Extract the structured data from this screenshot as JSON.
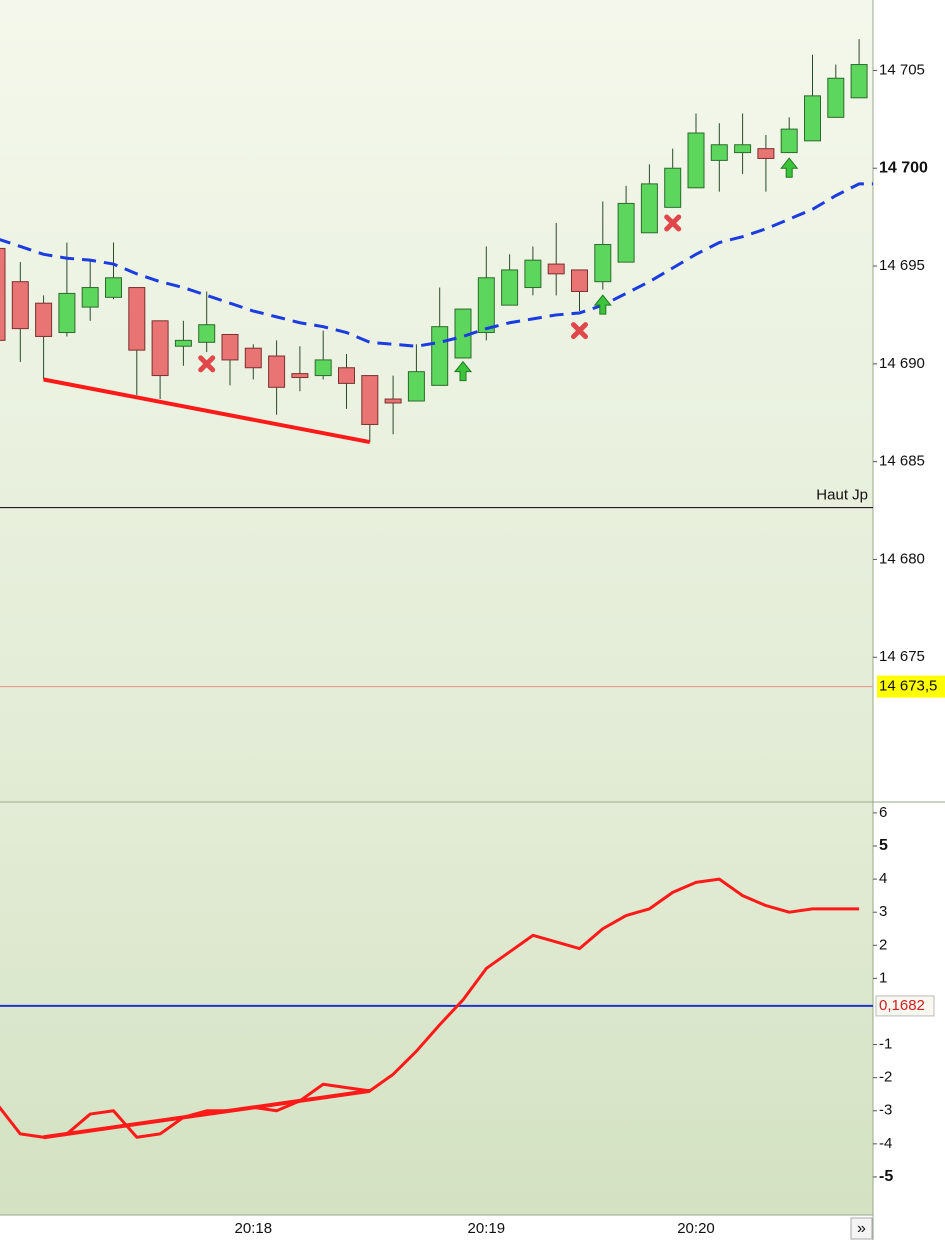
{
  "chart_data": [
    {
      "type": "candlestick",
      "open": [
        14695.9,
        14694.2,
        14693.1,
        14691.6,
        14692.9,
        14693.4,
        14693.9,
        14692.2,
        14690.9,
        14691.1,
        14691.5,
        14690.8,
        14690.4,
        14689.5,
        14689.4,
        14689.8,
        14689.4,
        14688.2,
        14688.1,
        14688.9,
        14690.3,
        14691.6,
        14693.0,
        14693.9,
        14695.1,
        14694.8,
        14694.2,
        14695.2,
        14696.7,
        14698.0,
        14699.0,
        14700.4,
        14700.8,
        14701.0,
        14700.8,
        14701.4,
        14702.6,
        14703.6
      ],
      "high": [
        14696.0,
        14695.2,
        14693.5,
        14696.2,
        14695.3,
        14696.2,
        14693.9,
        14692.2,
        14692.2,
        14693.7,
        14691.5,
        14691.0,
        14691.2,
        14690.9,
        14691.7,
        14690.5,
        14689.4,
        14689.4,
        14691.0,
        14693.9,
        14692.8,
        14696.0,
        14695.6,
        14696.0,
        14697.2,
        14694.8,
        14698.3,
        14699.1,
        14700.2,
        14701.0,
        14702.8,
        14702.3,
        14702.8,
        14701.7,
        14702.6,
        14705.8,
        14705.3,
        14706.6
      ],
      "low": [
        14689.9,
        14690.1,
        14689.2,
        14691.4,
        14692.2,
        14693.3,
        14688.4,
        14688.2,
        14689.9,
        14690.6,
        14688.9,
        14689.2,
        14687.4,
        14688.6,
        14689.2,
        14687.7,
        14686.0,
        14686.4,
        14688.1,
        14688.9,
        14690.3,
        14691.2,
        14693.0,
        14693.5,
        14693.5,
        14692.7,
        14693.8,
        14695.2,
        14696.7,
        14698.0,
        14699.0,
        14698.8,
        14699.7,
        14698.8,
        14700.8,
        14701.4,
        14702.6,
        14703.6
      ],
      "close": [
        14691.2,
        14691.8,
        14691.4,
        14693.6,
        14693.9,
        14694.4,
        14690.7,
        14689.4,
        14691.2,
        14692.0,
        14690.2,
        14689.8,
        14688.8,
        14689.3,
        14690.2,
        14689.0,
        14686.9,
        14688.0,
        14689.6,
        14691.9,
        14692.8,
        14694.4,
        14694.8,
        14695.3,
        14694.6,
        14693.7,
        14696.1,
        14698.2,
        14699.2,
        14700.0,
        14701.8,
        14701.2,
        14701.2,
        14700.5,
        14702.0,
        14703.7,
        14704.6,
        14705.3
      ],
      "up_color": "#5cd65c",
      "down_color": "#e87474",
      "moving_average": {
        "color": "#1a3ce0",
        "values": [
          14696.4,
          14696.0,
          14695.6,
          14695.4,
          14695.3,
          14695.1,
          14694.6,
          14694.2,
          14693.9,
          14693.5,
          14693.1,
          14692.7,
          14692.4,
          14692.1,
          14691.9,
          14691.6,
          14691.1,
          14691.0,
          14690.9,
          14691.1,
          14691.4,
          14691.8,
          14692.1,
          14692.3,
          14692.5,
          14692.6,
          14693.0,
          14693.6,
          14694.2,
          14694.9,
          14695.6,
          14696.2,
          14696.5,
          14696.9,
          14697.4,
          14697.9,
          14698.6,
          14699.2
        ]
      },
      "trendline": {
        "color": "#ff1a1a",
        "points": [
          {
            "index": 2,
            "value": 14689.2
          },
          {
            "index": 16,
            "value": 14686.0
          }
        ]
      },
      "sell_markers": [
        null,
        null,
        null,
        null,
        null,
        null,
        null,
        null,
        null,
        14690.0,
        null,
        null,
        null,
        null,
        null,
        null,
        null,
        null,
        null,
        null,
        null,
        null,
        null,
        null,
        null,
        14691.7,
        null,
        null,
        null,
        14697.2,
        null,
        null,
        null,
        null,
        null,
        null,
        null,
        null
      ],
      "buy_markers": [
        null,
        null,
        null,
        null,
        null,
        null,
        null,
        null,
        null,
        null,
        null,
        null,
        null,
        null,
        null,
        null,
        null,
        null,
        null,
        null,
        14689.6,
        null,
        null,
        null,
        null,
        null,
        14693.0,
        null,
        null,
        null,
        null,
        null,
        null,
        null,
        14700.0,
        null,
        null,
        null
      ],
      "ylim": [
        14667.6,
        14708.6
      ],
      "yticks": [
        {
          "value": 14705,
          "label": "14 705"
        },
        {
          "value": 14700,
          "label": "14 700"
        },
        {
          "value": 14695,
          "label": "14 695"
        },
        {
          "value": 14690,
          "label": "14 690"
        },
        {
          "value": 14685,
          "label": "14 685"
        },
        {
          "value": 14680,
          "label": "14 680"
        },
        {
          "value": 14675,
          "label": "14 675"
        }
      ],
      "bold_yticks": [
        14700
      ],
      "level_line": {
        "value": 14682.65,
        "label": "Haut Jp"
      },
      "last_price": {
        "value": 14673.5,
        "label": "14 673,5"
      }
    },
    {
      "type": "line",
      "categories": [
        null,
        null,
        null,
        null,
        null,
        null,
        null,
        null,
        null,
        null,
        null,
        "20:18",
        null,
        null,
        null,
        null,
        null,
        null,
        null,
        null,
        null,
        "20:19",
        null,
        null,
        null,
        null,
        null,
        null,
        null,
        null,
        "20:20",
        null,
        null,
        null,
        null,
        null,
        null,
        null
      ],
      "series": [
        {
          "color": "#ff1a1a",
          "values": [
            -2.8,
            -3.7,
            -3.8,
            -3.7,
            -3.1,
            -3.0,
            -3.8,
            -3.7,
            -3.2,
            -3.0,
            -3.0,
            -2.9,
            -3.0,
            -2.7,
            -2.2,
            -2.3,
            -2.4,
            -1.9,
            -1.2,
            -0.4,
            0.35,
            1.3,
            1.8,
            2.3,
            2.1,
            1.9,
            2.5,
            2.9,
            3.1,
            3.6,
            3.9,
            4.0,
            3.5,
            3.2,
            3.0,
            3.1,
            3.1,
            3.1
          ]
        }
      ],
      "trendline": {
        "color": "#ff1a1a",
        "points": [
          {
            "index": 2,
            "value": -3.8
          },
          {
            "index": 16,
            "value": -2.4
          }
        ]
      },
      "ylim": [
        -6.15,
        6.33
      ],
      "yticks": [
        6,
        5,
        4,
        3,
        2,
        1,
        -1,
        -2,
        -3,
        -4,
        -5
      ],
      "bold_yticks": [
        5,
        -5
      ],
      "reference": {
        "value": 0.1682,
        "label": "0,1682",
        "color": "#2233cc"
      }
    }
  ],
  "scroll_button": "»"
}
